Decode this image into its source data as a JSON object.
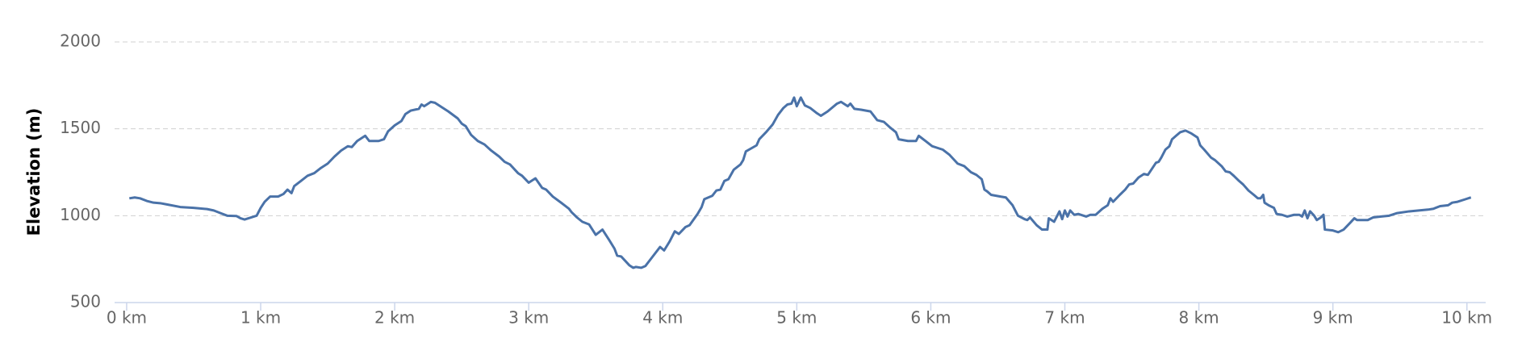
{
  "chart_data": {
    "type": "line",
    "y_label": "Elevation (m)",
    "color": "#4a72a8",
    "grid": true,
    "xlim": [
      -0.09,
      10.14
    ],
    "ylim": [
      500,
      2000
    ],
    "yticks": [
      500,
      1000,
      1500,
      2000
    ],
    "xticks": [
      {
        "value": 0,
        "label": "0 km"
      },
      {
        "value": 1,
        "label": "1 km"
      },
      {
        "value": 2,
        "label": "2 km"
      },
      {
        "value": 3,
        "label": "3 km"
      },
      {
        "value": 4,
        "label": "4 km"
      },
      {
        "value": 5,
        "label": "5 km"
      },
      {
        "value": 6,
        "label": "6 km"
      },
      {
        "value": 7,
        "label": "7 km"
      },
      {
        "value": 8,
        "label": "8 km"
      },
      {
        "value": 9,
        "label": "9 km"
      },
      {
        "value": 10,
        "label": "10 km"
      }
    ],
    "x": [
      0.02,
      0.06,
      0.1,
      0.15,
      0.2,
      0.25,
      0.3,
      0.4,
      0.5,
      0.6,
      0.65,
      0.7,
      0.75,
      0.82,
      0.85,
      0.88,
      0.93,
      0.97,
      1.0,
      1.03,
      1.07,
      1.13,
      1.17,
      1.2,
      1.23,
      1.25,
      1.3,
      1.35,
      1.4,
      1.45,
      1.5,
      1.55,
      1.6,
      1.65,
      1.68,
      1.72,
      1.78,
      1.81,
      1.88,
      1.92,
      1.95,
      2.0,
      2.05,
      2.08,
      2.12,
      2.18,
      2.2,
      2.22,
      2.27,
      2.3,
      2.35,
      2.4,
      2.47,
      2.5,
      2.53,
      2.57,
      2.62,
      2.67,
      2.72,
      2.78,
      2.82,
      2.86,
      2.92,
      2.95,
      3.0,
      3.05,
      3.1,
      3.13,
      3.18,
      3.25,
      3.3,
      3.32,
      3.36,
      3.4,
      3.45,
      3.5,
      3.55,
      3.6,
      3.64,
      3.66,
      3.69,
      3.72,
      3.75,
      3.78,
      3.8,
      3.84,
      3.87,
      3.92,
      3.98,
      4.01,
      4.05,
      4.09,
      4.12,
      4.17,
      4.2,
      4.26,
      4.29,
      4.31,
      4.37,
      4.4,
      4.43,
      4.46,
      4.49,
      4.53,
      4.58,
      4.6,
      4.62,
      4.7,
      4.72,
      4.77,
      4.82,
      4.86,
      4.9,
      4.93,
      4.96,
      4.98,
      5.0,
      5.03,
      5.06,
      5.1,
      5.15,
      5.18,
      5.23,
      5.3,
      5.33,
      5.38,
      5.4,
      5.43,
      5.48,
      5.55,
      5.57,
      5.6,
      5.65,
      5.7,
      5.74,
      5.76,
      5.83,
      5.89,
      5.91,
      5.96,
      6.01,
      6.09,
      6.14,
      6.2,
      6.25,
      6.3,
      6.34,
      6.38,
      6.4,
      6.42,
      6.45,
      6.52,
      6.56,
      6.61,
      6.65,
      6.7,
      6.72,
      6.74,
      6.79,
      6.83,
      6.87,
      6.88,
      6.92,
      6.96,
      6.98,
      7.0,
      7.02,
      7.04,
      7.07,
      7.1,
      7.16,
      7.19,
      7.23,
      7.28,
      7.32,
      7.34,
      7.36,
      7.41,
      7.45,
      7.48,
      7.51,
      7.55,
      7.59,
      7.62,
      7.65,
      7.68,
      7.7,
      7.72,
      7.75,
      7.78,
      7.8,
      7.83,
      7.86,
      7.9,
      7.94,
      7.99,
      8.01,
      8.04,
      8.09,
      8.12,
      8.17,
      8.2,
      8.23,
      8.26,
      8.3,
      8.33,
      8.37,
      8.41,
      8.44,
      8.46,
      8.48,
      8.49,
      8.52,
      8.56,
      8.58,
      8.62,
      8.66,
      8.71,
      8.75,
      8.77,
      8.79,
      8.81,
      8.83,
      8.86,
      8.88,
      8.91,
      8.93,
      8.94,
      9.0,
      9.04,
      9.08,
      9.13,
      9.16,
      9.18,
      9.26,
      9.3,
      9.36,
      9.42,
      9.48,
      9.57,
      9.71,
      9.75,
      9.8,
      9.86,
      9.89,
      9.93,
      9.99,
      10.03
    ],
    "values": [
      1100,
      1105,
      1100,
      1085,
      1075,
      1072,
      1065,
      1050,
      1045,
      1038,
      1030,
      1015,
      1000,
      998,
      985,
      978,
      990,
      1000,
      1045,
      1080,
      1110,
      1110,
      1125,
      1150,
      1130,
      1170,
      1200,
      1230,
      1245,
      1275,
      1300,
      1340,
      1375,
      1400,
      1395,
      1430,
      1460,
      1430,
      1430,
      1440,
      1485,
      1520,
      1545,
      1585,
      1605,
      1615,
      1640,
      1630,
      1655,
      1650,
      1625,
      1600,
      1560,
      1530,
      1515,
      1465,
      1430,
      1410,
      1375,
      1340,
      1310,
      1295,
      1245,
      1230,
      1190,
      1215,
      1160,
      1150,
      1110,
      1070,
      1040,
      1020,
      990,
      965,
      950,
      890,
      920,
      860,
      810,
      770,
      765,
      740,
      715,
      700,
      705,
      700,
      710,
      760,
      820,
      800,
      850,
      910,
      895,
      935,
      945,
      1010,
      1050,
      1095,
      1115,
      1145,
      1150,
      1200,
      1210,
      1265,
      1295,
      1320,
      1370,
      1405,
      1440,
      1480,
      1525,
      1580,
      1620,
      1640,
      1645,
      1680,
      1630,
      1680,
      1635,
      1620,
      1590,
      1575,
      1600,
      1645,
      1655,
      1630,
      1645,
      1615,
      1610,
      1600,
      1580,
      1550,
      1540,
      1505,
      1480,
      1440,
      1430,
      1430,
      1460,
      1430,
      1400,
      1380,
      1350,
      1300,
      1285,
      1250,
      1235,
      1210,
      1150,
      1140,
      1120,
      1110,
      1105,
      1060,
      1000,
      980,
      975,
      990,
      945,
      920,
      920,
      985,
      965,
      1025,
      980,
      1030,
      995,
      1030,
      1005,
      1010,
      995,
      1005,
      1005,
      1040,
      1060,
      1100,
      1080,
      1120,
      1150,
      1180,
      1185,
      1220,
      1240,
      1235,
      1270,
      1305,
      1310,
      1335,
      1380,
      1400,
      1440,
      1460,
      1480,
      1490,
      1475,
      1450,
      1405,
      1380,
      1335,
      1320,
      1285,
      1255,
      1250,
      1230,
      1200,
      1180,
      1145,
      1120,
      1100,
      1100,
      1120,
      1075,
      1060,
      1045,
      1010,
      1005,
      995,
      1005,
      1005,
      995,
      1030,
      985,
      1025,
      1000,
      975,
      990,
      1005,
      920,
      915,
      905,
      920,
      960,
      985,
      975,
      975,
      990,
      995,
      1000,
      1015,
      1025,
      1035,
      1040,
      1055,
      1060,
      1075,
      1080,
      1095,
      1105
    ]
  }
}
